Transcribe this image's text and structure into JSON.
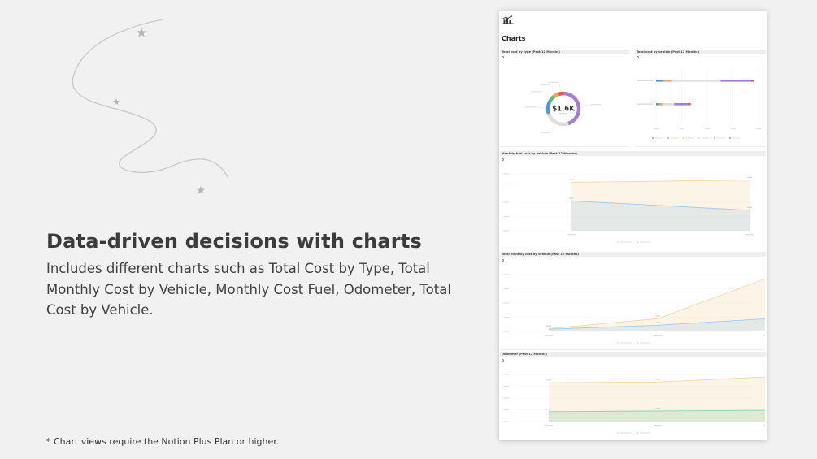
{
  "headline": "Data-driven decisions with charts",
  "subtext": "Includes different charts such as Total Cost by Type, Total Monthly Cost by Vehicle, Monthly Cost Fuel, Odometer, Total Cost by Vehicle.",
  "footnote": "Chart views require the Notion Plus Plan or higher.",
  "footnote_marker": "*",
  "panel": {
    "title": "Charts",
    "sections": {
      "cost_by_type": "Total cost by type (Past 12 Months)",
      "cost_by_vehicle": "Total cost by vehicle (Past 12 Months)",
      "fuel_by_vehicle": "Monthly fuel cost by vehicle (Past 12 Months)",
      "monthly_cost": "Total monthly cost by vehicle (Past 12 Months)",
      "odometer": "Odometer (Past 12 Months)"
    },
    "donut_center": "$1.6K"
  },
  "colors": {
    "background": "#f1f1f1",
    "text": "#3b3b3b",
    "purple": "#a57cdb",
    "blue": "#5b8fd9",
    "green": "#5fba7d",
    "orange": "#f0a35e",
    "red": "#e05a5a",
    "cream": "#f2d7a8",
    "lightblue": "#a9c8e8"
  },
  "chart_data": [
    {
      "type": "pie",
      "center_label": "$1.6K",
      "slices": [
        {
          "value": 45,
          "color": "#a57cdb"
        },
        {
          "value": 25,
          "color": "#dddddd"
        },
        {
          "value": 12,
          "color": "#5b8fd9"
        },
        {
          "value": 8,
          "color": "#5fba7d"
        },
        {
          "value": 5,
          "color": "#f0a35e"
        },
        {
          "value": 5,
          "color": "#e05a5a"
        }
      ]
    },
    {
      "type": "bar",
      "orientation": "horizontal-stacked",
      "series_colors": [
        "#5b8fd9",
        "#5fba7d",
        "#f0a35e",
        "#dddddd",
        "#a57cdb",
        "#e05a5a"
      ],
      "rows": [
        [
          8,
          2,
          10,
          62,
          38,
          4
        ],
        [
          2,
          3,
          4,
          14,
          18,
          3
        ]
      ]
    },
    {
      "type": "area",
      "x": [
        0,
        1
      ],
      "series": [
        {
          "values": [
            170,
            178
          ],
          "color": "#f2d7a8"
        },
        {
          "values": [
            105,
            72
          ],
          "color": "#a9c8e8"
        }
      ],
      "ylim": [
        0,
        200
      ]
    },
    {
      "type": "area",
      "x": [
        0,
        1,
        2
      ],
      "series": [
        {
          "values": [
            10,
            45,
            188
          ],
          "color": "#f2d7a8"
        },
        {
          "values": [
            8,
            22,
            45
          ],
          "color": "#a9c8e8"
        }
      ],
      "ylim": [
        0,
        200
      ]
    },
    {
      "type": "area",
      "x": [
        0,
        1,
        2
      ],
      "series": [
        {
          "values": [
            165,
            168,
            190
          ],
          "color": "#f2d7a8"
        },
        {
          "values": [
            42,
            45,
            48
          ],
          "color": "#8fd3a5"
        }
      ],
      "ylim": [
        0,
        200
      ]
    }
  ]
}
